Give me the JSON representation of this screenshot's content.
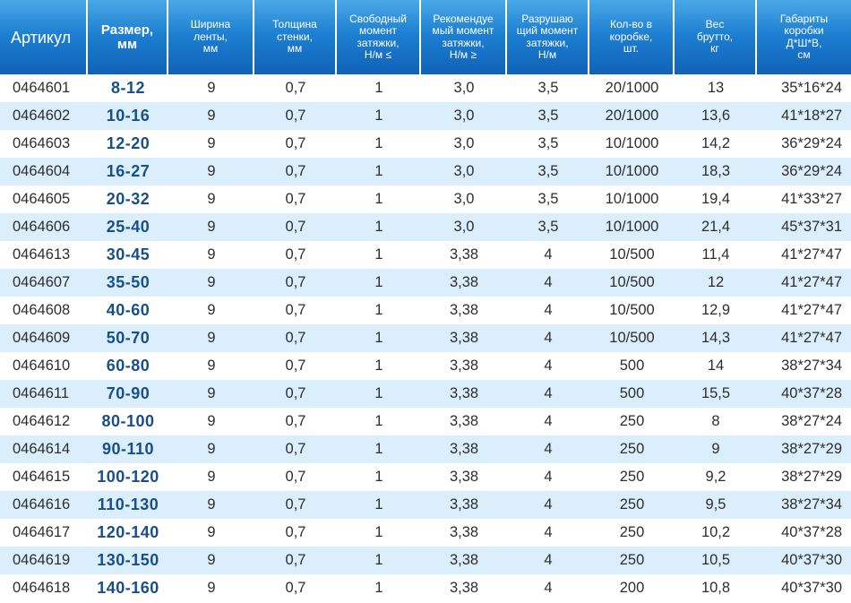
{
  "colors": {
    "header_bg_top": "#4aa8e6",
    "header_bg_bottom": "#0f62b8",
    "row_stripe": "#dbeefb",
    "size_text": "#184f8a",
    "cell_text": "#2e2e2e"
  },
  "header": {
    "article": "Артикул",
    "size_1": "Размер,",
    "size_2": "мм",
    "width_1": "Ширина",
    "width_2": "ленты,",
    "width_3": "мм",
    "wall_1": "Толщина",
    "wall_2": "стенки,",
    "wall_3": "мм",
    "free_1": "Свободный",
    "free_2": "момент",
    "free_3": "затяжки,",
    "free_4": "Н/м ≤",
    "rec_1": "Рекомендуе",
    "rec_2": "мый момент",
    "rec_3": "затяжки,",
    "rec_4": "Н/м ≥",
    "break_1": "Разрушаю",
    "break_2": "щий момент",
    "break_3": "затяжки,",
    "break_4": "Н/м",
    "qty_1": "Кол-во в",
    "qty_2": "коробке,",
    "qty_3": "шт.",
    "weight_1": "Вес",
    "weight_2": "брутто,",
    "weight_3": "кг",
    "dims_1": "Габариты",
    "dims_2": "коробки",
    "dims_3": "Д*Ш*В,",
    "dims_4": "см"
  },
  "rows": [
    {
      "article": "0464601",
      "size": "8-12",
      "width": "9",
      "wall": "0,7",
      "free": "1",
      "rec": "3,0",
      "break": "3,5",
      "qty": "20/1000",
      "weight": "13",
      "dims": "35*16*24"
    },
    {
      "article": "0464602",
      "size": "10-16",
      "width": "9",
      "wall": "0,7",
      "free": "1",
      "rec": "3,0",
      "break": "3,5",
      "qty": "20/1000",
      "weight": "13,6",
      "dims": "41*18*27"
    },
    {
      "article": "0464603",
      "size": "12-20",
      "width": "9",
      "wall": "0,7",
      "free": "1",
      "rec": "3,0",
      "break": "3,5",
      "qty": "10/1000",
      "weight": "14,2",
      "dims": "36*29*24"
    },
    {
      "article": "0464604",
      "size": "16-27",
      "width": "9",
      "wall": "0,7",
      "free": "1",
      "rec": "3,0",
      "break": "3,5",
      "qty": "10/1000",
      "weight": "18,3",
      "dims": "36*29*24"
    },
    {
      "article": "0464605",
      "size": "20-32",
      "width": "9",
      "wall": "0,7",
      "free": "1",
      "rec": "3,0",
      "break": "3,5",
      "qty": "10/1000",
      "weight": "19,4",
      "dims": "41*33*27"
    },
    {
      "article": "0464606",
      "size": "25-40",
      "width": "9",
      "wall": "0,7",
      "free": "1",
      "rec": "3,0",
      "break": "3,5",
      "qty": "10/1000",
      "weight": "21,4",
      "dims": "45*37*31"
    },
    {
      "article": "0464613",
      "size": "30-45",
      "width": "9",
      "wall": "0,7",
      "free": "1",
      "rec": "3,38",
      "break": "4",
      "qty": "10/500",
      "weight": "11,4",
      "dims": "41*27*47"
    },
    {
      "article": "0464607",
      "size": "35-50",
      "width": "9",
      "wall": "0,7",
      "free": "1",
      "rec": "3,38",
      "break": "4",
      "qty": "10/500",
      "weight": "12",
      "dims": "41*27*47"
    },
    {
      "article": "0464608",
      "size": "40-60",
      "width": "9",
      "wall": "0,7",
      "free": "1",
      "rec": "3,38",
      "break": "4",
      "qty": "10/500",
      "weight": "12,9",
      "dims": "41*27*47"
    },
    {
      "article": "0464609",
      "size": "50-70",
      "width": "9",
      "wall": "0,7",
      "free": "1",
      "rec": "3,38",
      "break": "4",
      "qty": "10/500",
      "weight": "14,3",
      "dims": "41*27*47"
    },
    {
      "article": "0464610",
      "size": "60-80",
      "width": "9",
      "wall": "0,7",
      "free": "1",
      "rec": "3,38",
      "break": "4",
      "qty": "500",
      "weight": "14",
      "dims": "38*27*34"
    },
    {
      "article": "0464611",
      "size": "70-90",
      "width": "9",
      "wall": "0,7",
      "free": "1",
      "rec": "3,38",
      "break": "4",
      "qty": "500",
      "weight": "15,5",
      "dims": "40*37*28"
    },
    {
      "article": "0464612",
      "size": "80-100",
      "width": "9",
      "wall": "0,7",
      "free": "1",
      "rec": "3,38",
      "break": "4",
      "qty": "250",
      "weight": "8",
      "dims": "38*27*24"
    },
    {
      "article": "0464614",
      "size": "90-110",
      "width": "9",
      "wall": "0,7",
      "free": "1",
      "rec": "3,38",
      "break": "4",
      "qty": "250",
      "weight": "9",
      "dims": "38*27*29"
    },
    {
      "article": "0464615",
      "size": "100-120",
      "width": "9",
      "wall": "0,7",
      "free": "1",
      "rec": "3,38",
      "break": "4",
      "qty": "250",
      "weight": "9,2",
      "dims": "38*27*29"
    },
    {
      "article": "0464616",
      "size": "110-130",
      "width": "9",
      "wall": "0,7",
      "free": "1",
      "rec": "3,38",
      "break": "4",
      "qty": "250",
      "weight": "9,5",
      "dims": "38*27*34"
    },
    {
      "article": "0464617",
      "size": "120-140",
      "width": "9",
      "wall": "0,7",
      "free": "1",
      "rec": "3,38",
      "break": "4",
      "qty": "250",
      "weight": "10,2",
      "dims": "40*37*28"
    },
    {
      "article": "0464619",
      "size": "130-150",
      "width": "9",
      "wall": "0,7",
      "free": "1",
      "rec": "3,38",
      "break": "4",
      "qty": "250",
      "weight": "10,5",
      "dims": "40*37*30"
    },
    {
      "article": "0464618",
      "size": "140-160",
      "width": "9",
      "wall": "0,7",
      "free": "1",
      "rec": "3,38",
      "break": "4",
      "qty": "200",
      "weight": "10,8",
      "dims": "40*37*30"
    }
  ]
}
